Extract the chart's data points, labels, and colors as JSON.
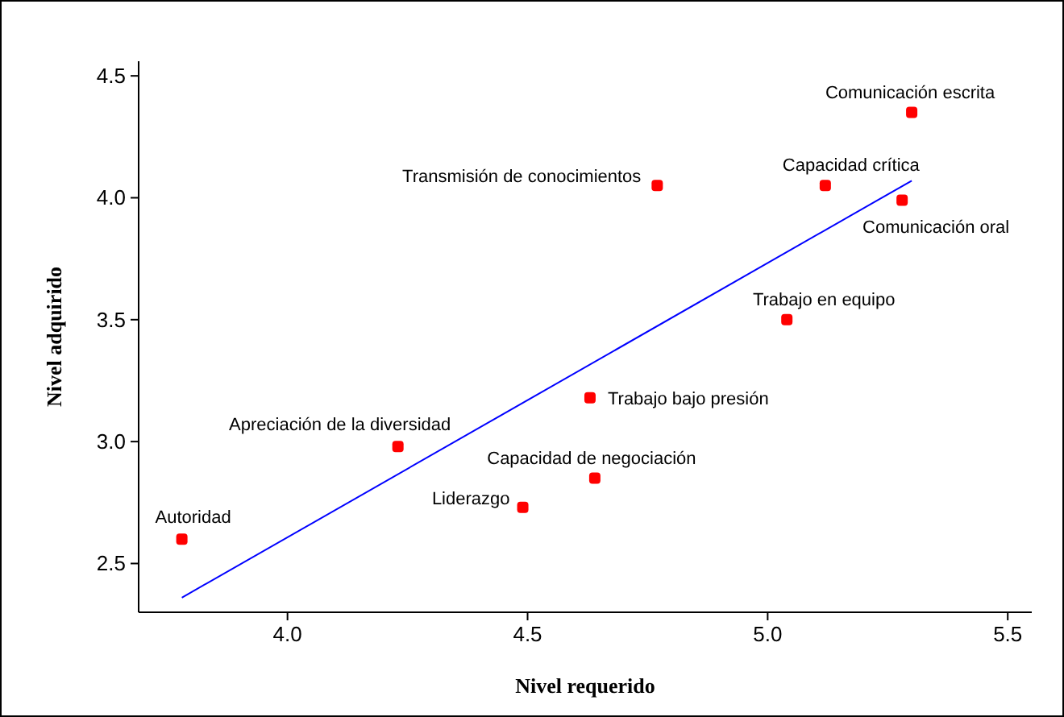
{
  "chart_data": {
    "type": "scatter",
    "xlabel": "Nivel requerido",
    "ylabel": "Nivel adquirido",
    "xlim": [
      3.69,
      5.55
    ],
    "ylim": [
      2.3,
      4.56
    ],
    "xticks": [
      {
        "value": 4,
        "label": "4.0"
      },
      {
        "value": 4.5,
        "label": "4.5"
      },
      {
        "value": 5,
        "label": "5.0"
      },
      {
        "value": 5.5,
        "label": "5.5"
      }
    ],
    "yticks": [
      {
        "value": 2.5,
        "label": "2.5"
      },
      {
        "value": 3,
        "label": "3.0"
      },
      {
        "value": 3.5,
        "label": "3.5"
      },
      {
        "value": 4,
        "label": "4.0"
      },
      {
        "value": 4.5,
        "label": "4.5"
      }
    ],
    "grid": false,
    "series": [
      {
        "marker": "square",
        "color": "#ff0000",
        "x": [
          3.78,
          4.23,
          4.49,
          4.64,
          4.63,
          4.77,
          5.04,
          5.12,
          5.28,
          5.3
        ],
        "values": [
          2.6,
          2.98,
          2.73,
          2.85,
          3.18,
          4.05,
          3.5,
          4.05,
          3.99,
          4.35
        ]
      },
      {
        "type": "line",
        "color": "#0000ff",
        "x": [
          3.78,
          5.3
        ],
        "values": [
          2.36,
          4.07
        ]
      }
    ],
    "annotations": [
      {
        "text": "Autoridad",
        "x": 3.78,
        "y": 2.6
      },
      {
        "text": "Apreciación de la diversidad",
        "x": 4.23,
        "y": 2.98
      },
      {
        "text": "Liderazgo",
        "x": 4.49,
        "y": 2.73
      },
      {
        "text": "Capacidad de negociación",
        "x": 4.64,
        "y": 2.85
      },
      {
        "text": "Trabajo bajo presión",
        "x": 4.63,
        "y": 3.18
      },
      {
        "text": "Transmisión de conocimientos",
        "x": 4.77,
        "y": 4.05
      },
      {
        "text": "Trabajo en equipo",
        "x": 5.04,
        "y": 3.5
      },
      {
        "text": "Capacidad crítica",
        "x": 5.12,
        "y": 4.05
      },
      {
        "text": "Comunicación oral",
        "x": 5.28,
        "y": 3.99
      },
      {
        "text": "Comunicación escrita",
        "x": 5.3,
        "y": 4.35
      }
    ]
  }
}
